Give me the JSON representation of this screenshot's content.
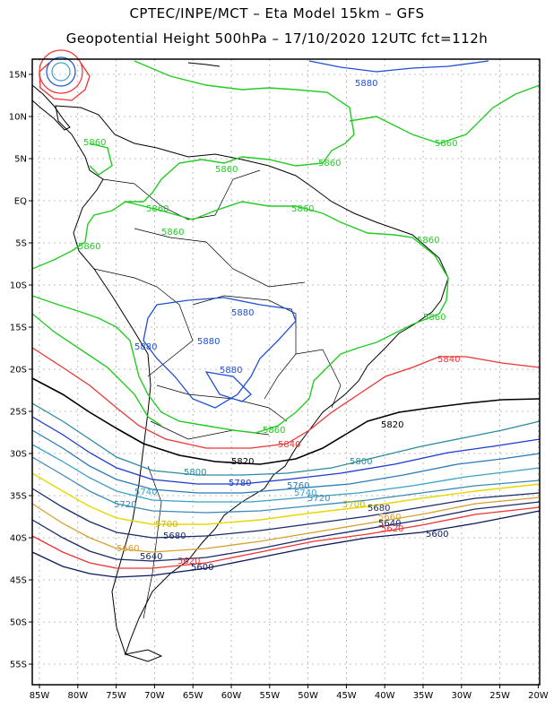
{
  "header": {
    "line1": "CPTEC/INPE/MCT –  Eta Model 15km – GFS",
    "line2": "Geopotential Height 500hPa – 17/10/2020 12UTC fct=112h"
  },
  "axes": {
    "lat_labels": [
      "15N",
      "10N",
      "5N",
      "EQ",
      "5S",
      "10S",
      "15S",
      "20S",
      "25S",
      "30S",
      "35S",
      "40S",
      "45S",
      "50S",
      "55S"
    ],
    "lon_labels": [
      "85W",
      "80W",
      "75W",
      "70W",
      "65W",
      "60W",
      "55W",
      "50W",
      "45W",
      "40W",
      "35W",
      "30W",
      "25W",
      "20W"
    ]
  },
  "contours": [
    {
      "value": "5880",
      "color": "#1f4fd6"
    },
    {
      "value": "5860",
      "color": "#22cc22"
    },
    {
      "value": "5840",
      "color": "#ee3333"
    },
    {
      "value": "5820",
      "color": "#000000"
    },
    {
      "value": "5800",
      "color": "#2a8aa0"
    },
    {
      "value": "5780",
      "color": "#1a3ad0"
    },
    {
      "value": "5760",
      "color": "#2a7ab8"
    },
    {
      "value": "5740",
      "color": "#3aa0c8"
    },
    {
      "value": "5720",
      "color": "#3a8ab8"
    },
    {
      "value": "5700",
      "color": "#e8d800"
    },
    {
      "value": "5680",
      "color": "#1a2a6a"
    },
    {
      "value": "5660",
      "color": "#d8a030"
    },
    {
      "value": "5640",
      "color": "#1a2a6a"
    },
    {
      "value": "5620",
      "color": "#ee3333"
    },
    {
      "value": "5600",
      "color": "#0a1a5a"
    }
  ]
}
